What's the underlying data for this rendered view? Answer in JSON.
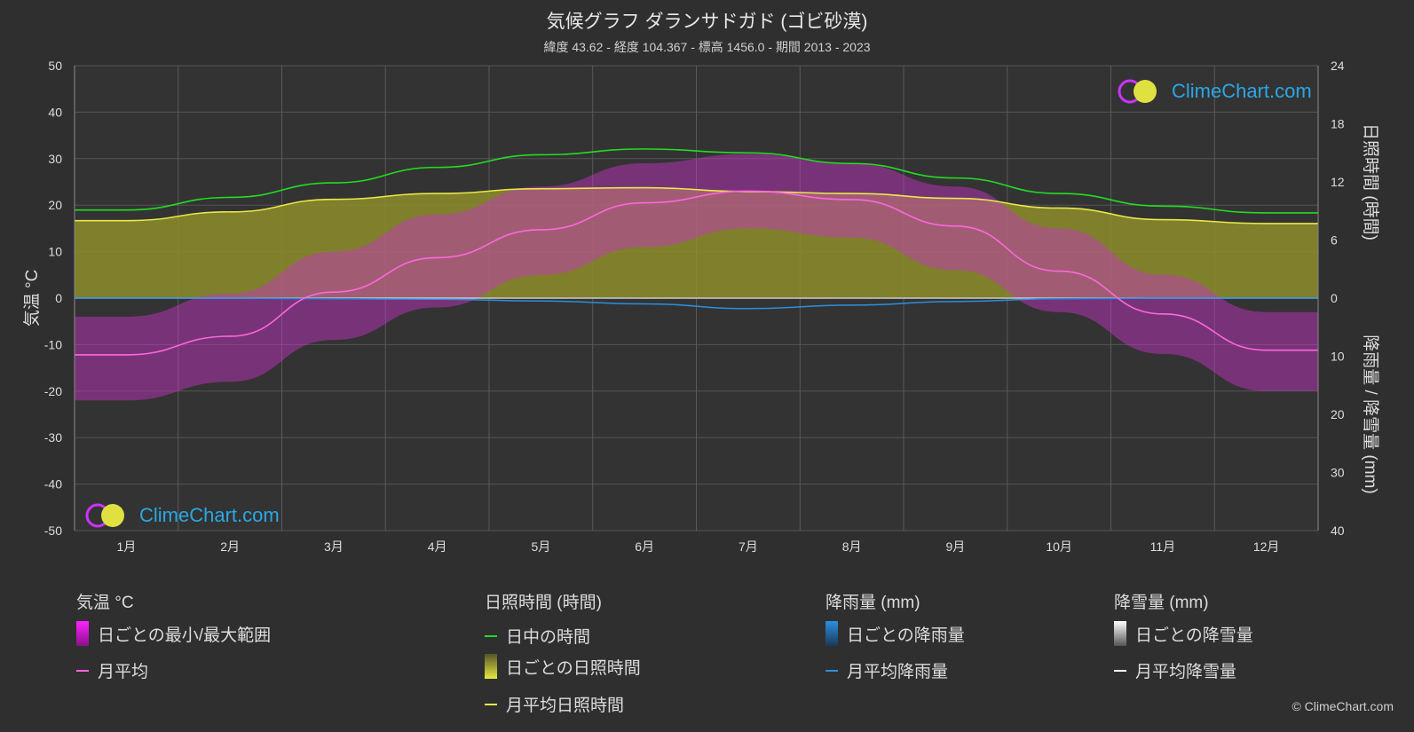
{
  "chart_data": {
    "type": "area",
    "title": "気候グラフ ダランサドガド (ゴビ砂漠)",
    "subtitle": "緯度 43.62 - 経度 104.367 - 標高 1456.0 - 期間 2013 - 2023",
    "categories": [
      "1月",
      "2月",
      "3月",
      "4月",
      "5月",
      "6月",
      "7月",
      "8月",
      "9月",
      "10月",
      "11月",
      "12月"
    ],
    "y_left": {
      "label": "気温 °C",
      "range": [
        -50,
        50
      ],
      "ticks": [
        50,
        40,
        30,
        20,
        10,
        0,
        -10,
        -20,
        -30,
        -40,
        -50
      ]
    },
    "y_right_top": {
      "label": "日照時間 (時間)",
      "range": [
        0,
        24
      ],
      "ticks": [
        24,
        18,
        12,
        6,
        0
      ]
    },
    "y_right_bottom": {
      "label": "降雨量 / 降雪量 (mm)",
      "range": [
        0,
        40
      ],
      "ticks": [
        10,
        20,
        30,
        40
      ]
    },
    "series": [
      {
        "name": "日中の時間",
        "unit": "時間",
        "color": "#22dd22",
        "values": [
          9.1,
          10.4,
          11.9,
          13.5,
          14.8,
          15.4,
          15.0,
          13.9,
          12.4,
          10.8,
          9.5,
          8.8
        ]
      },
      {
        "name": "月平均日照時間",
        "unit": "時間",
        "color": "#e8e84a",
        "values": [
          8.0,
          8.9,
          10.2,
          10.8,
          11.3,
          11.4,
          11.0,
          10.8,
          10.3,
          9.3,
          8.1,
          7.7
        ]
      },
      {
        "name": "月平均",
        "unit": "°C",
        "color": "#ff66dd",
        "values": [
          -12.2,
          -8.2,
          1.3,
          8.7,
          14.7,
          20.5,
          23.0,
          21.2,
          15.5,
          5.8,
          -3.4,
          -11.2
        ]
      },
      {
        "name": "日ごとの最小/最大範囲",
        "unit": "°C",
        "color": "#dd22dd",
        "min": [
          -22,
          -18,
          -9,
          -2,
          5,
          11,
          15,
          13,
          6,
          -3,
          -12,
          -20
        ],
        "max": [
          -4,
          1,
          10,
          18,
          24,
          29,
          31,
          29,
          24,
          15,
          5,
          -3
        ]
      },
      {
        "name": "月平均降雨量",
        "unit": "mm",
        "color": "#2b8fe0",
        "values": [
          0.0,
          0.0,
          0.1,
          0.2,
          0.5,
          1.0,
          1.8,
          1.2,
          0.6,
          0.1,
          0.0,
          0.0
        ]
      },
      {
        "name": "月平均降雪量",
        "unit": "mm",
        "color": "#ffffff",
        "values": [
          0.1,
          0.1,
          0.1,
          0.1,
          0.0,
          0.0,
          0.0,
          0.0,
          0.0,
          0.1,
          0.1,
          0.1
        ]
      }
    ]
  },
  "legend": {
    "temp": {
      "head": "気温 °C",
      "range": "日ごとの最小/最大範囲",
      "avg": "月平均"
    },
    "sun": {
      "head": "日照時間 (時間)",
      "daylight": "日中の時間",
      "daily": "日ごとの日照時間",
      "avg": "月平均日照時間"
    },
    "rain": {
      "head": "降雨量 (mm)",
      "daily": "日ごとの降雨量",
      "avg": "月平均降雨量"
    },
    "snow": {
      "head": "降雪量 (mm)",
      "daily": "日ごとの降雪量",
      "avg": "月平均降雪量"
    }
  },
  "logo_text": "ClimeChart.com",
  "copyright": "© ClimeChart.com",
  "colors": {
    "background": "#2f2f2f",
    "grid": "#555555",
    "sun_fill": "#9a9a30",
    "temp_fill": "#cc33cc"
  }
}
